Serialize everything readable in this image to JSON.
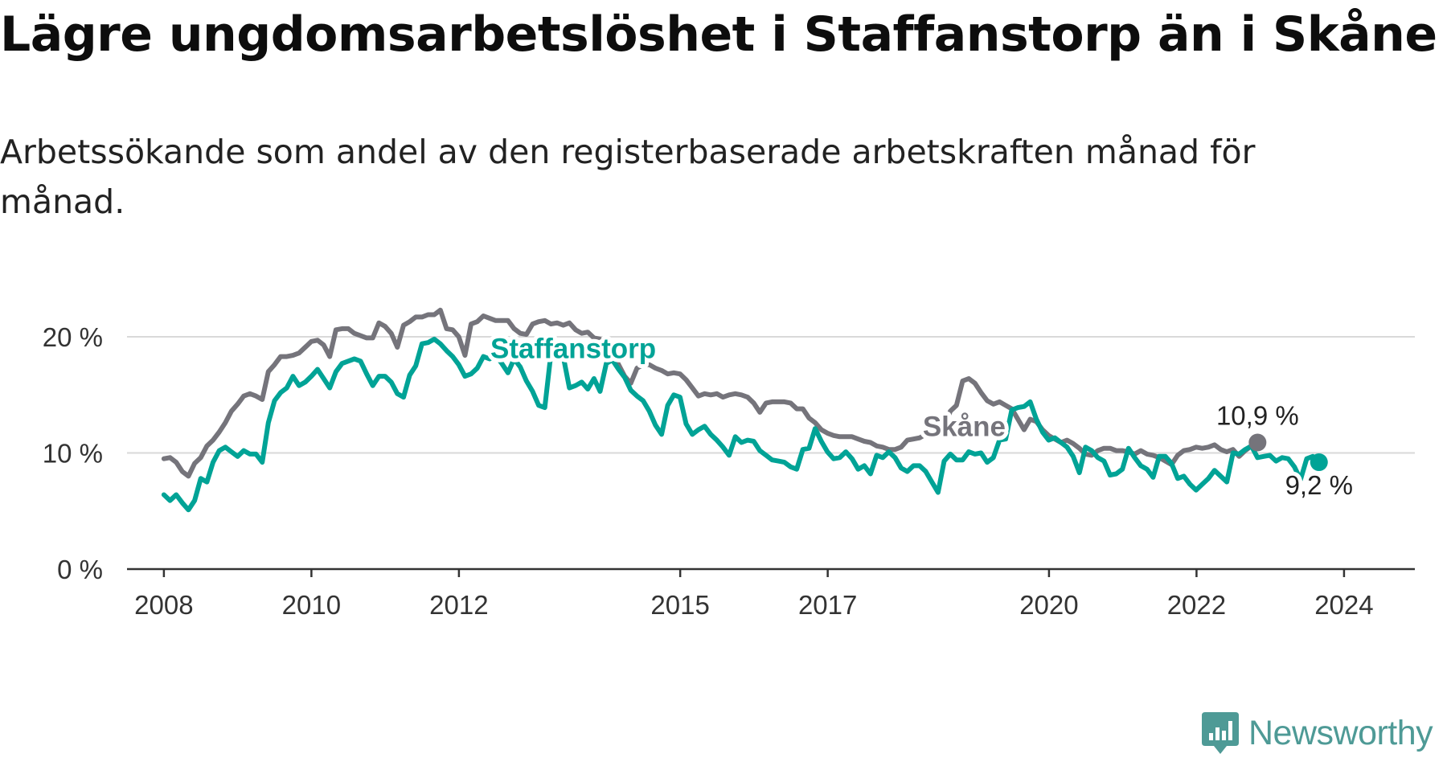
{
  "title": "Lägre ungdomsarbetslöshet i Staffanstorp än i Skåne",
  "subtitle": "Arbetssökande som andel av den registerbaserade arbetskraften månad för månad.",
  "brand": {
    "name": "Newsworthy",
    "color": "#4e9a96"
  },
  "chart_data": {
    "type": "line",
    "title": "Lägre ungdomsarbetslöshet i Staffanstorp än i Skåne",
    "subtitle": "Arbetssökande som andel av den registerbaserade arbetskraften månad för månad.",
    "xlabel": "",
    "ylabel": "",
    "unit": "%",
    "xlim": [
      2007.5,
      2024.96
    ],
    "ylim": [
      0,
      20
    ],
    "x_ticks": [
      2008,
      2010,
      2012,
      2015,
      2017,
      2020,
      2022,
      2024
    ],
    "y_ticks": [
      {
        "value": 0,
        "label": "0 %"
      },
      {
        "value": 10,
        "label": "10 %"
      },
      {
        "value": 20,
        "label": "20 %"
      }
    ],
    "grid": true,
    "x_start": 2008.0,
    "x_step": 0.0833,
    "series": [
      {
        "name": "Skåne",
        "color": "#75747b",
        "label_pos": [
          2018.85,
          12.3
        ],
        "end_label": "10,9 %",
        "values": [
          9.5,
          9.6,
          9.2,
          8.4,
          8.0,
          9.1,
          9.6,
          10.6,
          11.1,
          11.8,
          12.6,
          13.6,
          14.2,
          14.9,
          15.1,
          14.9,
          14.6,
          17.0,
          17.6,
          18.3,
          18.3,
          18.4,
          18.6,
          19.1,
          19.6,
          19.7,
          19.3,
          18.3,
          20.6,
          20.7,
          20.7,
          20.3,
          20.1,
          19.9,
          19.9,
          21.2,
          20.9,
          20.3,
          19.1,
          21.0,
          21.3,
          21.7,
          21.7,
          21.9,
          21.9,
          22.3,
          20.7,
          20.6,
          20.0,
          18.4,
          21.1,
          21.3,
          21.8,
          21.6,
          21.4,
          21.4,
          21.4,
          20.7,
          20.3,
          20.2,
          21.1,
          21.3,
          21.4,
          21.1,
          21.2,
          21.0,
          21.2,
          20.6,
          20.3,
          20.4,
          19.9,
          19.8,
          19.4,
          18.7,
          17.6,
          16.6,
          16.0,
          17.3,
          17.6,
          17.6,
          17.3,
          17.1,
          16.8,
          16.9,
          16.8,
          16.3,
          15.6,
          14.9,
          15.1,
          15.0,
          15.1,
          14.8,
          15.0,
          15.1,
          15.0,
          14.8,
          14.3,
          13.5,
          14.3,
          14.4,
          14.4,
          14.4,
          14.3,
          13.8,
          13.8,
          13.0,
          12.6,
          12.0,
          11.7,
          11.5,
          11.4,
          11.4,
          11.4,
          11.2,
          11.0,
          10.9,
          10.6,
          10.5,
          10.3,
          10.3,
          10.5,
          11.1,
          11.2,
          11.3,
          11.6,
          11.4,
          11.8,
          12.3,
          13.6,
          14.1,
          16.2,
          16.4,
          16.0,
          15.2,
          14.5,
          14.2,
          14.4,
          14.1,
          13.8,
          12.9,
          12.0,
          12.9,
          12.7,
          12.0,
          11.5,
          11.2,
          10.9,
          11.1,
          10.8,
          10.4,
          9.9,
          9.8,
          10.2,
          10.4,
          10.4,
          10.2,
          10.2,
          10.1,
          9.9,
          10.2,
          9.9,
          9.8,
          9.6,
          9.3,
          9.0,
          9.8,
          10.2,
          10.3,
          10.5,
          10.4,
          10.5,
          10.7,
          10.3,
          10.1,
          10.3,
          9.7,
          10.2,
          10.6,
          10.9
        ]
      },
      {
        "name": "Staffanstorp",
        "color": "#00a396",
        "label_pos": [
          2013.55,
          19.0
        ],
        "end_label": "9,2 %",
        "values": [
          6.4,
          5.9,
          6.4,
          5.7,
          5.1,
          5.9,
          7.8,
          7.5,
          9.2,
          10.2,
          10.5,
          10.1,
          9.7,
          10.2,
          9.9,
          9.9,
          9.2,
          12.6,
          14.5,
          15.2,
          15.6,
          16.6,
          15.8,
          16.1,
          16.6,
          17.2,
          16.4,
          15.6,
          17.0,
          17.7,
          17.9,
          18.1,
          17.9,
          16.8,
          15.8,
          16.6,
          16.6,
          16.1,
          15.1,
          14.8,
          16.7,
          17.5,
          19.4,
          19.5,
          19.8,
          19.4,
          18.8,
          18.3,
          17.6,
          16.6,
          16.8,
          17.3,
          18.3,
          18.1,
          18.4,
          17.7,
          16.9,
          18.1,
          17.4,
          16.2,
          15.3,
          14.1,
          13.9,
          18.6,
          18.8,
          18.3,
          15.6,
          15.8,
          16.1,
          15.5,
          16.4,
          15.3,
          17.7,
          18.0,
          17.2,
          16.5,
          15.4,
          14.9,
          14.5,
          13.6,
          12.4,
          11.6,
          14.1,
          15.0,
          14.8,
          12.5,
          11.6,
          12.0,
          12.3,
          11.6,
          11.1,
          10.5,
          9.8,
          11.4,
          10.9,
          11.1,
          11.0,
          10.2,
          9.8,
          9.4,
          9.3,
          9.2,
          8.8,
          8.6,
          10.3,
          10.4,
          12.1,
          11.0,
          10.1,
          9.5,
          9.6,
          10.1,
          9.5,
          8.6,
          8.9,
          8.2,
          9.8,
          9.6,
          10.1,
          9.6,
          8.7,
          8.4,
          8.9,
          8.9,
          8.4,
          7.5,
          6.6,
          9.3,
          9.9,
          9.4,
          9.4,
          10.1,
          9.9,
          10.0,
          9.2,
          9.6,
          11.1,
          11.2,
          13.7,
          13.9,
          14.0,
          14.4,
          12.9,
          11.8,
          11.1,
          11.3,
          10.9,
          10.5,
          9.7,
          8.3,
          10.5,
          10.2,
          9.6,
          9.3,
          8.1,
          8.2,
          8.6,
          10.4,
          9.6,
          8.9,
          8.6,
          7.9,
          9.7,
          9.7,
          9.1,
          7.8,
          8.0,
          7.3,
          6.8,
          7.3,
          7.8,
          8.5,
          8.0,
          7.5,
          10.0,
          9.9,
          10.3,
          10.6,
          9.6,
          9.7,
          9.8,
          9.3,
          9.6,
          9.5,
          8.8,
          7.7,
          9.5,
          9.7,
          9.2
        ]
      }
    ]
  }
}
